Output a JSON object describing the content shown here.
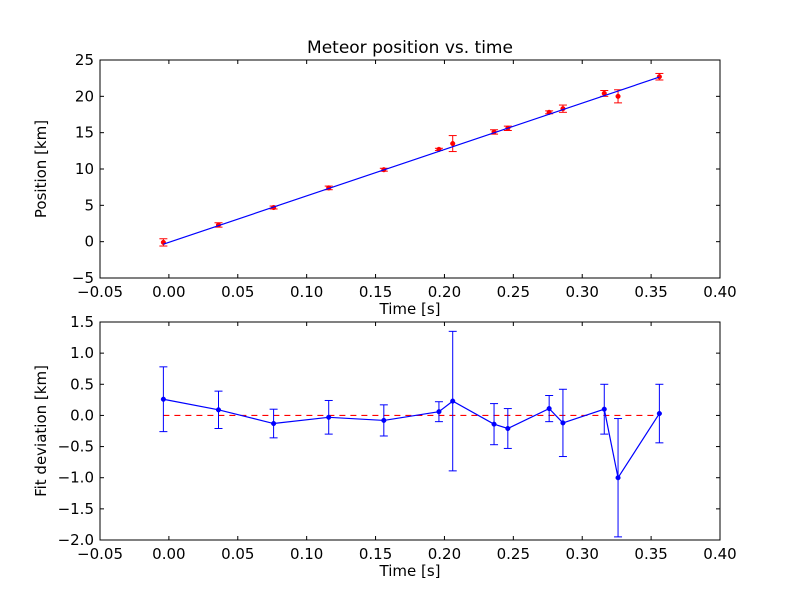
{
  "chart_data": [
    {
      "type": "scatter",
      "title": "Meteor position vs. time",
      "xlabel": "Time [s]",
      "ylabel": "Position [km]",
      "xlim": [
        -0.05,
        0.4
      ],
      "ylim": [
        -5,
        25
      ],
      "x_ticks": [
        "−0.05",
        "0.00",
        "0.05",
        "0.10",
        "0.15",
        "0.20",
        "0.25",
        "0.30",
        "0.35",
        "0.40"
      ],
      "y_ticks": [
        "−5",
        "0",
        "5",
        "10",
        "15",
        "20",
        "25"
      ],
      "grid": false,
      "series": [
        {
          "kind": "errorbar-points",
          "color": "#ff0000",
          "x": [
            -0.004,
            0.036,
            0.076,
            0.116,
            0.156,
            0.196,
            0.206,
            0.236,
            0.246,
            0.276,
            0.286,
            0.316,
            0.326,
            0.356
          ],
          "y": [
            -0.1,
            2.3,
            4.7,
            7.4,
            9.9,
            12.7,
            13.5,
            15.1,
            15.6,
            17.8,
            18.3,
            20.4,
            20.0,
            22.7
          ],
          "yerr": [
            0.5,
            0.3,
            0.2,
            0.25,
            0.2,
            0.15,
            1.1,
            0.3,
            0.3,
            0.2,
            0.5,
            0.4,
            0.9,
            0.45
          ]
        },
        {
          "kind": "fit-line",
          "color": "#0000ff",
          "x": [
            -0.004,
            0.356
          ],
          "y": [
            -0.35,
            22.65
          ]
        }
      ]
    },
    {
      "type": "line",
      "xlabel": "Time [s]",
      "ylabel": "Fit deviation [km]",
      "xlim": [
        -0.05,
        0.4
      ],
      "ylim": [
        -2.0,
        1.5
      ],
      "x_ticks": [
        "−0.05",
        "0.00",
        "0.05",
        "0.10",
        "0.15",
        "0.20",
        "0.25",
        "0.30",
        "0.35",
        "0.40"
      ],
      "y_ticks": [
        "−2.0",
        "−1.5",
        "−1.0",
        "−0.5",
        "0.0",
        "0.5",
        "1.0",
        "1.5"
      ],
      "grid": false,
      "reference_line": {
        "y": 0.0,
        "color": "#ff0000",
        "style": "dashed"
      },
      "series": [
        {
          "kind": "errorbar-line",
          "color": "#0000ff",
          "x": [
            -0.004,
            0.036,
            0.076,
            0.116,
            0.156,
            0.196,
            0.206,
            0.236,
            0.246,
            0.276,
            0.286,
            0.316,
            0.326,
            0.356
          ],
          "y": [
            0.26,
            0.09,
            -0.13,
            -0.03,
            -0.08,
            0.06,
            0.23,
            -0.14,
            -0.21,
            0.11,
            -0.12,
            0.1,
            -1.0,
            0.03
          ],
          "yerr": [
            0.52,
            0.3,
            0.23,
            0.27,
            0.25,
            0.16,
            1.12,
            0.33,
            0.32,
            0.21,
            0.54,
            0.4,
            0.95,
            0.47
          ]
        }
      ]
    }
  ]
}
